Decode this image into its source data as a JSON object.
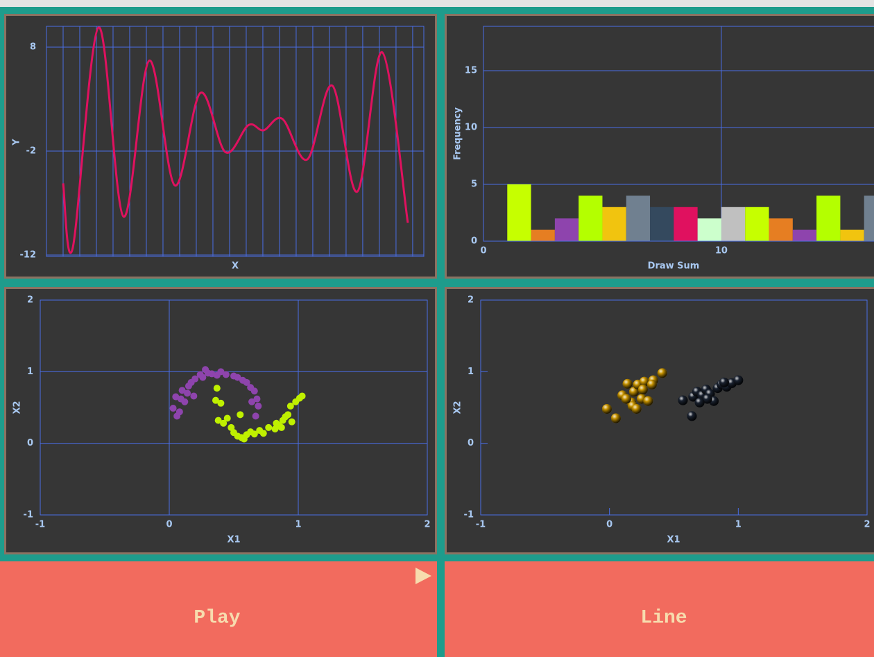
{
  "chart_data": [
    {
      "type": "line",
      "x_label": "X",
      "y_label": "Y",
      "color": "#e0115f",
      "grid": true,
      "x": [
        1,
        1.58,
        3.13,
        4.63,
        6.17,
        7.71,
        9.25,
        10.75,
        12.13,
        13.04,
        14.17,
        15.67,
        17.17,
        18.67,
        20.17,
        21.71
      ],
      "values": [
        -5.1,
        -11.3,
        9.9,
        -8.3,
        6.7,
        -5.3,
        3.6,
        -2.1,
        0.5,
        0,
        1.1,
        -2.8,
        4.3,
        -5.9,
        7.5,
        -8.9
      ],
      "xlim": [
        0,
        22.67
      ],
      "xticks": [
        1,
        2,
        3,
        4,
        5,
        6,
        7,
        8,
        9,
        10,
        11,
        12,
        13,
        14,
        15,
        16,
        17,
        18,
        19,
        20,
        21,
        22
      ],
      "ylim": [
        -12.13,
        10
      ],
      "yticks": [
        8,
        -2,
        -12
      ]
    },
    {
      "type": "histogram",
      "x_label": "Draw Sum",
      "y_label": "Frequency",
      "grid": true,
      "bins": [
        1,
        2,
        3,
        4,
        5,
        6,
        7,
        8,
        9,
        10,
        11,
        12,
        13,
        14,
        15,
        16,
        17
      ],
      "values": [
        5,
        1,
        2,
        4,
        3,
        4,
        3,
        3,
        2,
        3,
        3,
        2,
        1,
        4,
        1,
        4
      ],
      "colors": [
        "#c6ff00",
        "#e67e22",
        "#8e44ad",
        "#b4ff00",
        "#f1c40f",
        "#708090",
        "#34495e",
        "#e0115f",
        "#ccffcc",
        "#c0c0c0",
        "#c6ff00",
        "#e67e22",
        "#8e44ad",
        "#b4ff00",
        "#f1c40f",
        "#708090"
      ],
      "xlim": [
        0,
        17
      ],
      "xticks": [
        0,
        10
      ],
      "ylim": [
        0,
        18.9
      ],
      "yticks": [
        0,
        5,
        10,
        15
      ]
    },
    {
      "type": "scatter",
      "x_label": "X1",
      "y_label": "X2",
      "grid": true,
      "xlim": [
        -1,
        2
      ],
      "xticks": [
        -1,
        0,
        1,
        2
      ],
      "ylim": [
        -1,
        2
      ],
      "yticks": [
        -1,
        0,
        1,
        2
      ],
      "series": [
        {
          "color": "#8e44ad",
          "x": [
            0.03,
            0.06,
            0.08,
            0.05,
            0.09,
            0.12,
            0.1,
            0.15,
            0.17,
            0.14,
            0.2,
            0.24,
            0.28,
            0.3,
            0.33,
            0.37,
            0.4,
            0.44,
            0.5,
            0.53,
            0.57,
            0.6,
            0.63,
            0.66,
            0.68,
            0.64,
            0.69,
            0.67,
            0.19,
            0.26
          ],
          "values": [
            0.49,
            0.38,
            0.44,
            0.65,
            0.62,
            0.58,
            0.74,
            0.8,
            0.85,
            0.7,
            0.9,
            0.96,
            1.03,
            0.98,
            0.97,
            0.95,
            1.0,
            0.96,
            0.94,
            0.92,
            0.88,
            0.85,
            0.78,
            0.73,
            0.62,
            0.58,
            0.52,
            0.38,
            0.66,
            0.92
          ]
        },
        {
          "color": "#bff000",
          "x": [
            0.37,
            0.36,
            0.4,
            0.38,
            0.42,
            0.45,
            0.48,
            0.5,
            0.53,
            0.56,
            0.58,
            0.6,
            0.63,
            0.66,
            0.7,
            0.73,
            0.77,
            0.82,
            0.85,
            0.88,
            0.9,
            0.92,
            0.95,
            0.94,
            0.98,
            1.01,
            1.03,
            0.55,
            0.87,
            0.83
          ],
          "values": [
            0.77,
            0.6,
            0.56,
            0.32,
            0.28,
            0.35,
            0.22,
            0.15,
            0.1,
            0.08,
            0.06,
            0.12,
            0.16,
            0.13,
            0.18,
            0.14,
            0.22,
            0.2,
            0.25,
            0.32,
            0.37,
            0.4,
            0.3,
            0.52,
            0.58,
            0.63,
            0.66,
            0.4,
            0.22,
            0.28
          ]
        }
      ]
    },
    {
      "type": "scatter3d",
      "x_label": "X1",
      "y_label": "X2",
      "grid": false,
      "xlim": [
        -1,
        2
      ],
      "xticks": [
        -1,
        0,
        1,
        2
      ],
      "ylim": [
        -1,
        2
      ],
      "yticks": [
        -1,
        0,
        1,
        2
      ],
      "series": [
        {
          "color": "#c89400",
          "x": [
            -0.02,
            0.05,
            0.1,
            0.14,
            0.17,
            0.19,
            0.22,
            0.25,
            0.27,
            0.3,
            0.34,
            0.41,
            0.18,
            0.13,
            0.26,
            0.21,
            0.33
          ],
          "values": [
            0.48,
            0.35,
            0.67,
            0.83,
            0.57,
            0.72,
            0.82,
            0.62,
            0.86,
            0.59,
            0.88,
            0.98,
            0.52,
            0.62,
            0.75,
            0.48,
            0.82
          ]
        },
        {
          "color": "#1a2230",
          "x": [
            0.57,
            0.64,
            0.65,
            0.68,
            0.72,
            0.75,
            0.78,
            0.81,
            0.84,
            0.87,
            0.91,
            0.95,
            1.0,
            0.76,
            0.7,
            0.89
          ],
          "values": [
            0.6,
            0.38,
            0.65,
            0.72,
            0.67,
            0.75,
            0.69,
            0.59,
            0.77,
            0.82,
            0.79,
            0.84,
            0.88,
            0.62,
            0.57,
            0.85
          ]
        }
      ]
    }
  ],
  "buttons": [
    "Play",
    "Line"
  ]
}
